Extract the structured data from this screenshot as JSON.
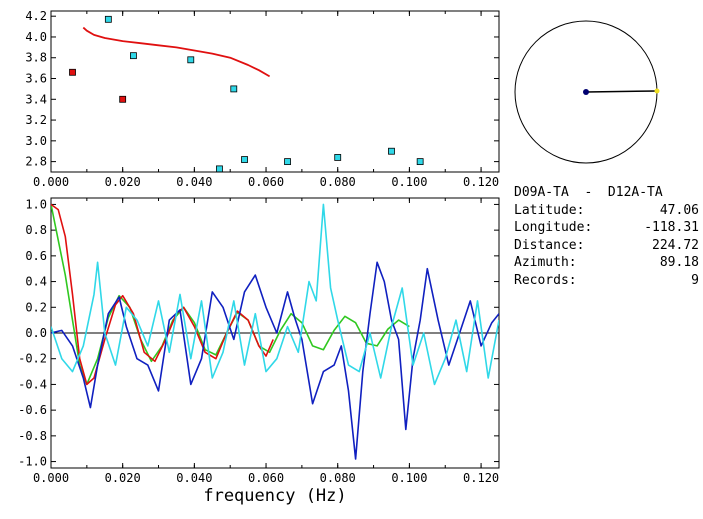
{
  "info": {
    "title": "D09A-TA  -  D12A-TA",
    "rows": [
      {
        "label": "Latitude:",
        "value": "47.06"
      },
      {
        "label": "Longitude:",
        "value": "-118.31"
      },
      {
        "label": "Distance:",
        "value": "224.72"
      },
      {
        "label": "Azimuth:",
        "value": "89.18"
      },
      {
        "label": "Records:",
        "value": "9"
      }
    ]
  },
  "colors": {
    "red": "#e01010",
    "cyan": "#30d8e8",
    "blue": "#1020c0",
    "green": "#30c820",
    "yellow": "#f0e020",
    "navy": "#000070"
  },
  "chart_data": [
    {
      "type": "scatter",
      "xlabel": "",
      "ylabel": "",
      "xlim": [
        0.0,
        0.125
      ],
      "ylim": [
        2.7,
        4.25
      ],
      "xticks": [
        "0.000",
        "0.020",
        "0.040",
        "0.060",
        "0.080",
        "0.100",
        "0.120"
      ],
      "yticks": [
        "2.8",
        "3.0",
        "3.2",
        "3.4",
        "3.6",
        "3.8",
        "4.0",
        "4.2"
      ],
      "series": [
        {
          "color": "red",
          "marker": "square",
          "x": [
            0.006,
            0.02
          ],
          "y": [
            3.66,
            3.4
          ]
        },
        {
          "color": "cyan",
          "marker": "square",
          "x": [
            0.016,
            0.023,
            0.039,
            0.051,
            0.047,
            0.054,
            0.066,
            0.08,
            0.095,
            0.103
          ],
          "y": [
            4.17,
            3.82,
            3.78,
            3.5,
            2.73,
            2.82,
            2.8,
            2.84,
            2.9,
            2.8
          ]
        },
        {
          "color": "red",
          "marker": "line",
          "x": [
            0.009,
            0.01,
            0.012,
            0.015,
            0.02,
            0.025,
            0.03,
            0.035,
            0.04,
            0.045,
            0.05,
            0.055,
            0.058,
            0.061
          ],
          "y": [
            4.09,
            4.06,
            4.02,
            3.99,
            3.96,
            3.94,
            3.92,
            3.9,
            3.87,
            3.84,
            3.8,
            3.73,
            3.68,
            3.62
          ]
        }
      ]
    },
    {
      "type": "line",
      "xlabel": "frequency (Hz)",
      "ylabel": "",
      "xlim": [
        0.0,
        0.125
      ],
      "ylim": [
        -1.05,
        1.05
      ],
      "xticks": [
        "0.000",
        "0.020",
        "0.040",
        "0.060",
        "0.080",
        "0.100",
        "0.120"
      ],
      "yticks": [
        "1.0",
        "0.8",
        "0.6",
        "0.4",
        "0.2",
        "0.0",
        "-0.2",
        "-0.4",
        "-0.6",
        "-0.8",
        "-1.0"
      ],
      "series": [
        {
          "color": "green",
          "x": [
            0.0,
            0.004,
            0.008,
            0.01,
            0.013,
            0.016,
            0.019,
            0.022,
            0.025,
            0.028,
            0.031,
            0.034,
            0.037,
            0.04,
            0.043,
            0.046,
            0.049,
            0.052,
            0.055,
            0.058,
            0.061,
            0.064,
            0.067,
            0.07,
            0.073,
            0.076,
            0.079,
            0.082,
            0.085,
            0.088,
            0.091,
            0.094,
            0.097,
            0.1
          ],
          "y": [
            1.0,
            0.45,
            -0.25,
            -0.4,
            -0.2,
            0.12,
            0.29,
            0.2,
            -0.05,
            -0.22,
            -0.1,
            0.1,
            0.2,
            0.08,
            -0.13,
            -0.17,
            0.0,
            0.16,
            0.1,
            -0.1,
            -0.15,
            0.02,
            0.15,
            0.08,
            -0.1,
            -0.13,
            0.02,
            0.13,
            0.08,
            -0.08,
            -0.1,
            0.03,
            0.1,
            0.05
          ]
        },
        {
          "color": "red",
          "x": [
            0.0,
            0.002,
            0.004,
            0.006,
            0.008,
            0.01,
            0.012,
            0.015,
            0.018,
            0.02,
            0.023,
            0.026,
            0.029,
            0.032,
            0.035,
            0.037,
            0.04,
            0.043,
            0.046,
            0.049,
            0.052,
            0.055,
            0.058,
            0.06,
            0.062
          ],
          "y": [
            1.0,
            0.96,
            0.75,
            0.3,
            -0.2,
            -0.4,
            -0.35,
            -0.05,
            0.22,
            0.29,
            0.15,
            -0.15,
            -0.22,
            -0.05,
            0.15,
            0.2,
            0.05,
            -0.15,
            -0.2,
            0.0,
            0.17,
            0.1,
            -0.1,
            -0.18,
            -0.05
          ]
        },
        {
          "color": "blue",
          "x": [
            0.0,
            0.003,
            0.006,
            0.009,
            0.011,
            0.013,
            0.016,
            0.019,
            0.021,
            0.024,
            0.027,
            0.03,
            0.033,
            0.036,
            0.039,
            0.042,
            0.045,
            0.048,
            0.051,
            0.054,
            0.057,
            0.06,
            0.063,
            0.066,
            0.068,
            0.07,
            0.073,
            0.076,
            0.079,
            0.081,
            0.083,
            0.085,
            0.087,
            0.089,
            0.091,
            0.093,
            0.095,
            0.097,
            0.099,
            0.101,
            0.103,
            0.105,
            0.108,
            0.111,
            0.114,
            0.117,
            0.12,
            0.123,
            0.125
          ],
          "y": [
            0.0,
            0.02,
            -0.1,
            -0.35,
            -0.58,
            -0.25,
            0.15,
            0.28,
            0.05,
            -0.2,
            -0.25,
            -0.45,
            0.1,
            0.18,
            -0.4,
            -0.2,
            0.32,
            0.2,
            -0.05,
            0.32,
            0.45,
            0.2,
            0.0,
            0.32,
            0.12,
            -0.05,
            -0.55,
            -0.3,
            -0.25,
            -0.1,
            -0.45,
            -0.98,
            -0.3,
            0.15,
            0.55,
            0.4,
            0.1,
            -0.05,
            -0.75,
            -0.2,
            0.1,
            0.5,
            0.1,
            -0.25,
            0.0,
            0.25,
            -0.1,
            0.08,
            0.15
          ]
        },
        {
          "color": "cyan",
          "x": [
            0.0,
            0.003,
            0.006,
            0.009,
            0.012,
            0.013,
            0.015,
            0.018,
            0.021,
            0.024,
            0.027,
            0.03,
            0.033,
            0.036,
            0.039,
            0.042,
            0.045,
            0.048,
            0.051,
            0.054,
            0.057,
            0.06,
            0.063,
            0.066,
            0.069,
            0.072,
            0.074,
            0.076,
            0.078,
            0.08,
            0.083,
            0.086,
            0.089,
            0.092,
            0.095,
            0.098,
            0.101,
            0.104,
            0.107,
            0.11,
            0.113,
            0.116,
            0.119,
            0.122,
            0.125
          ],
          "y": [
            0.05,
            -0.2,
            -0.3,
            -0.1,
            0.3,
            0.55,
            0.0,
            -0.25,
            0.2,
            0.1,
            -0.1,
            0.25,
            -0.15,
            0.3,
            -0.2,
            0.25,
            -0.35,
            -0.15,
            0.25,
            -0.25,
            0.15,
            -0.3,
            -0.2,
            0.05,
            -0.15,
            0.4,
            0.25,
            1.0,
            0.35,
            0.1,
            -0.25,
            -0.3,
            0.0,
            -0.35,
            0.05,
            0.35,
            -0.25,
            0.0,
            -0.4,
            -0.2,
            0.1,
            -0.3,
            0.25,
            -0.35,
            0.1
          ]
        }
      ]
    }
  ],
  "polar": {
    "azimuth": 89.18
  }
}
